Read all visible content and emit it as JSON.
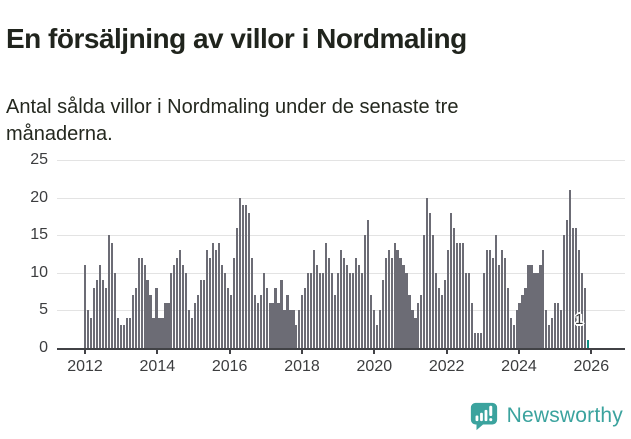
{
  "header": {
    "title": "En försäljning av villor i Nordmaling",
    "subtitle": "Antal sålda villor i Nordmaling under de senaste tre\nmånaderna."
  },
  "chart_data": {
    "type": "bar",
    "title": "En försäljning av villor i Nordmaling",
    "xlabel": "",
    "ylabel": "",
    "x_start_month": "2012-01",
    "x_end_month": "2026-01",
    "x_tick_labels": [
      "2012",
      "2014",
      "2016",
      "2018",
      "2020",
      "2022",
      "2024",
      "2026"
    ],
    "y_ticks": [
      0,
      5,
      10,
      15,
      20,
      25
    ],
    "ylim": [
      0,
      25
    ],
    "grid": true,
    "legend": "none",
    "bar_color": "#6C6C75",
    "highlight_color": "#0B8F83",
    "values": [
      11,
      5,
      4,
      8,
      9,
      11,
      9,
      8,
      15,
      14,
      10,
      4,
      3,
      3,
      4,
      4,
      7,
      8,
      12,
      12,
      11,
      9,
      7,
      4,
      8,
      4,
      4,
      6,
      6,
      10,
      11,
      12,
      13,
      11,
      10,
      5,
      4,
      6,
      7,
      9,
      9,
      13,
      12,
      14,
      13,
      14,
      11,
      10,
      8,
      7,
      12,
      16,
      20,
      19,
      19,
      18,
      12,
      7,
      6,
      7,
      10,
      8,
      6,
      6,
      8,
      6,
      9,
      5,
      7,
      5,
      5,
      3,
      5,
      7,
      8,
      10,
      10,
      13,
      11,
      10,
      10,
      14,
      12,
      10,
      7,
      10,
      13,
      12,
      11,
      10,
      10,
      12,
      11,
      10,
      15,
      17,
      7,
      5,
      3,
      5,
      9,
      12,
      13,
      12,
      14,
      13,
      12,
      11,
      10,
      7,
      5,
      4,
      6,
      7,
      15,
      20,
      18,
      15,
      10,
      8,
      7,
      9,
      13,
      18,
      16,
      14,
      14,
      14,
      10,
      10,
      6,
      2,
      2,
      2,
      10,
      13,
      13,
      12,
      15,
      11,
      13,
      12,
      8,
      4,
      3,
      5,
      6,
      7,
      8,
      11,
      11,
      10,
      10,
      11,
      13,
      5,
      3,
      4,
      6,
      6,
      5,
      15,
      17,
      21,
      16,
      16,
      13,
      10,
      8,
      1
    ],
    "highlight": {
      "index": 169,
      "label": "1",
      "value": 1
    }
  },
  "footer": {
    "brand": "Newsworthy",
    "brand_color": "#3BA39E",
    "logo_icon": "bar-chart-speech-bubble-icon"
  }
}
